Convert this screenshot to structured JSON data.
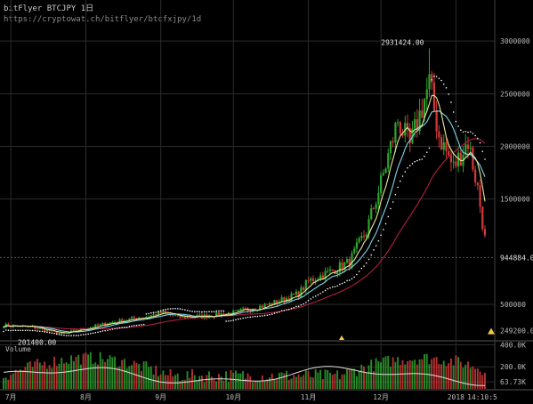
{
  "header": {
    "title": "bitFlyer BTCJPY 1日",
    "url": "https://cryptowat.ch/bitflyer/btcfxjpy/1d"
  },
  "chart_data": {
    "type": "candlestick",
    "price_ticks": [
      {
        "value": 3000000,
        "label": "3000000"
      },
      {
        "value": 2500000,
        "label": "2500000"
      },
      {
        "value": 2000000,
        "label": "2000000"
      },
      {
        "value": 1500000,
        "label": "1500000"
      },
      {
        "value": 500000,
        "label": "500000"
      }
    ],
    "price_ylim": [
      162000,
      3390000
    ],
    "current_price": {
      "value": 944884,
      "label": "944884.00"
    },
    "low_marker": {
      "value": 249200,
      "label": "249200.00"
    },
    "annotations": [
      {
        "label": "2931424.00",
        "value": 2931424,
        "date_index": 176
      },
      {
        "label": "201400.00",
        "value": 201400,
        "date_index": 24
      }
    ],
    "x_ticks": [
      {
        "label": "7月",
        "date_index": 3
      },
      {
        "label": "8月",
        "date_index": 34
      },
      {
        "label": "9月",
        "date_index": 65
      },
      {
        "label": "10月",
        "date_index": 95
      },
      {
        "label": "11月",
        "date_index": 126
      },
      {
        "label": "12月",
        "date_index": 156
      },
      {
        "label": "2018",
        "date_index": 187
      }
    ],
    "time_label": "14:10:5",
    "volume": {
      "label": "Volume",
      "ticks": [
        {
          "value": 400000,
          "label": "400.0K"
        },
        {
          "value": 200000,
          "label": "200.0K"
        },
        {
          "value": 63730,
          "label": "63.73K"
        }
      ],
      "ylim": [
        0,
        420000
      ]
    },
    "colors": {
      "up": "#2ea32e",
      "down": "#d23a3a",
      "ma_short": "#e8e89a",
      "ma_mid": "#7fd6e8",
      "ma_long": "#b02040",
      "sar": "#ffffff",
      "grid": "#2b2b2b",
      "marker": "#f2c94c"
    }
  }
}
